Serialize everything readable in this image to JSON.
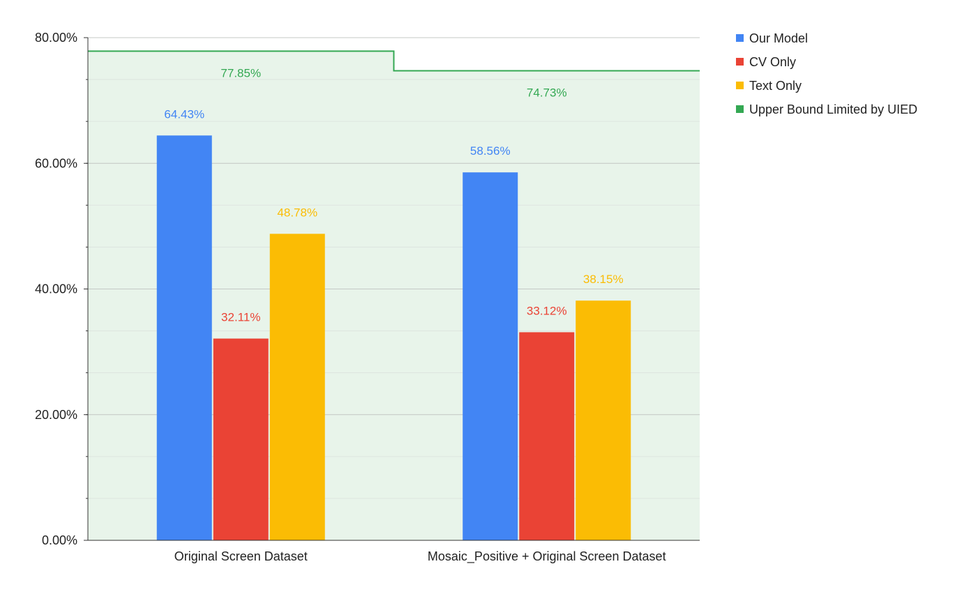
{
  "chart_data": {
    "type": "bar",
    "title": "",
    "xlabel": "",
    "ylabel": "",
    "ylim": [
      0,
      80
    ],
    "y_tick_format": "percent_2dp",
    "y_ticks": [
      0,
      20,
      40,
      60,
      80
    ],
    "y_tick_labels": [
      "0.00%",
      "20.00%",
      "40.00%",
      "60.00%",
      "80.00%"
    ],
    "y_minor_step": 6.667,
    "grid": true,
    "legend_position": "right",
    "categories": [
      "Original Screen Dataset",
      "Mosaic_Positive + Original Screen Dataset"
    ],
    "series": [
      {
        "name": "Our Model",
        "kind": "bar",
        "color": "#4285f4",
        "values": [
          64.43,
          58.56
        ],
        "labels": [
          "64.43%",
          "58.56%"
        ]
      },
      {
        "name": "CV Only",
        "kind": "bar",
        "color": "#ea4335",
        "values": [
          32.11,
          33.12
        ],
        "labels": [
          "32.11%",
          "33.12%"
        ]
      },
      {
        "name": "Text Only",
        "kind": "bar",
        "color": "#fbbc04",
        "values": [
          48.78,
          38.15
        ],
        "labels": [
          "48.78%",
          "38.15%"
        ]
      },
      {
        "name": "Upper Bound Limited by UIED",
        "kind": "stepped-area",
        "color": "#34a853",
        "fill": "#e8f4ea",
        "values": [
          77.85,
          74.73
        ],
        "labels": [
          "77.85%",
          "74.73%"
        ]
      }
    ]
  }
}
